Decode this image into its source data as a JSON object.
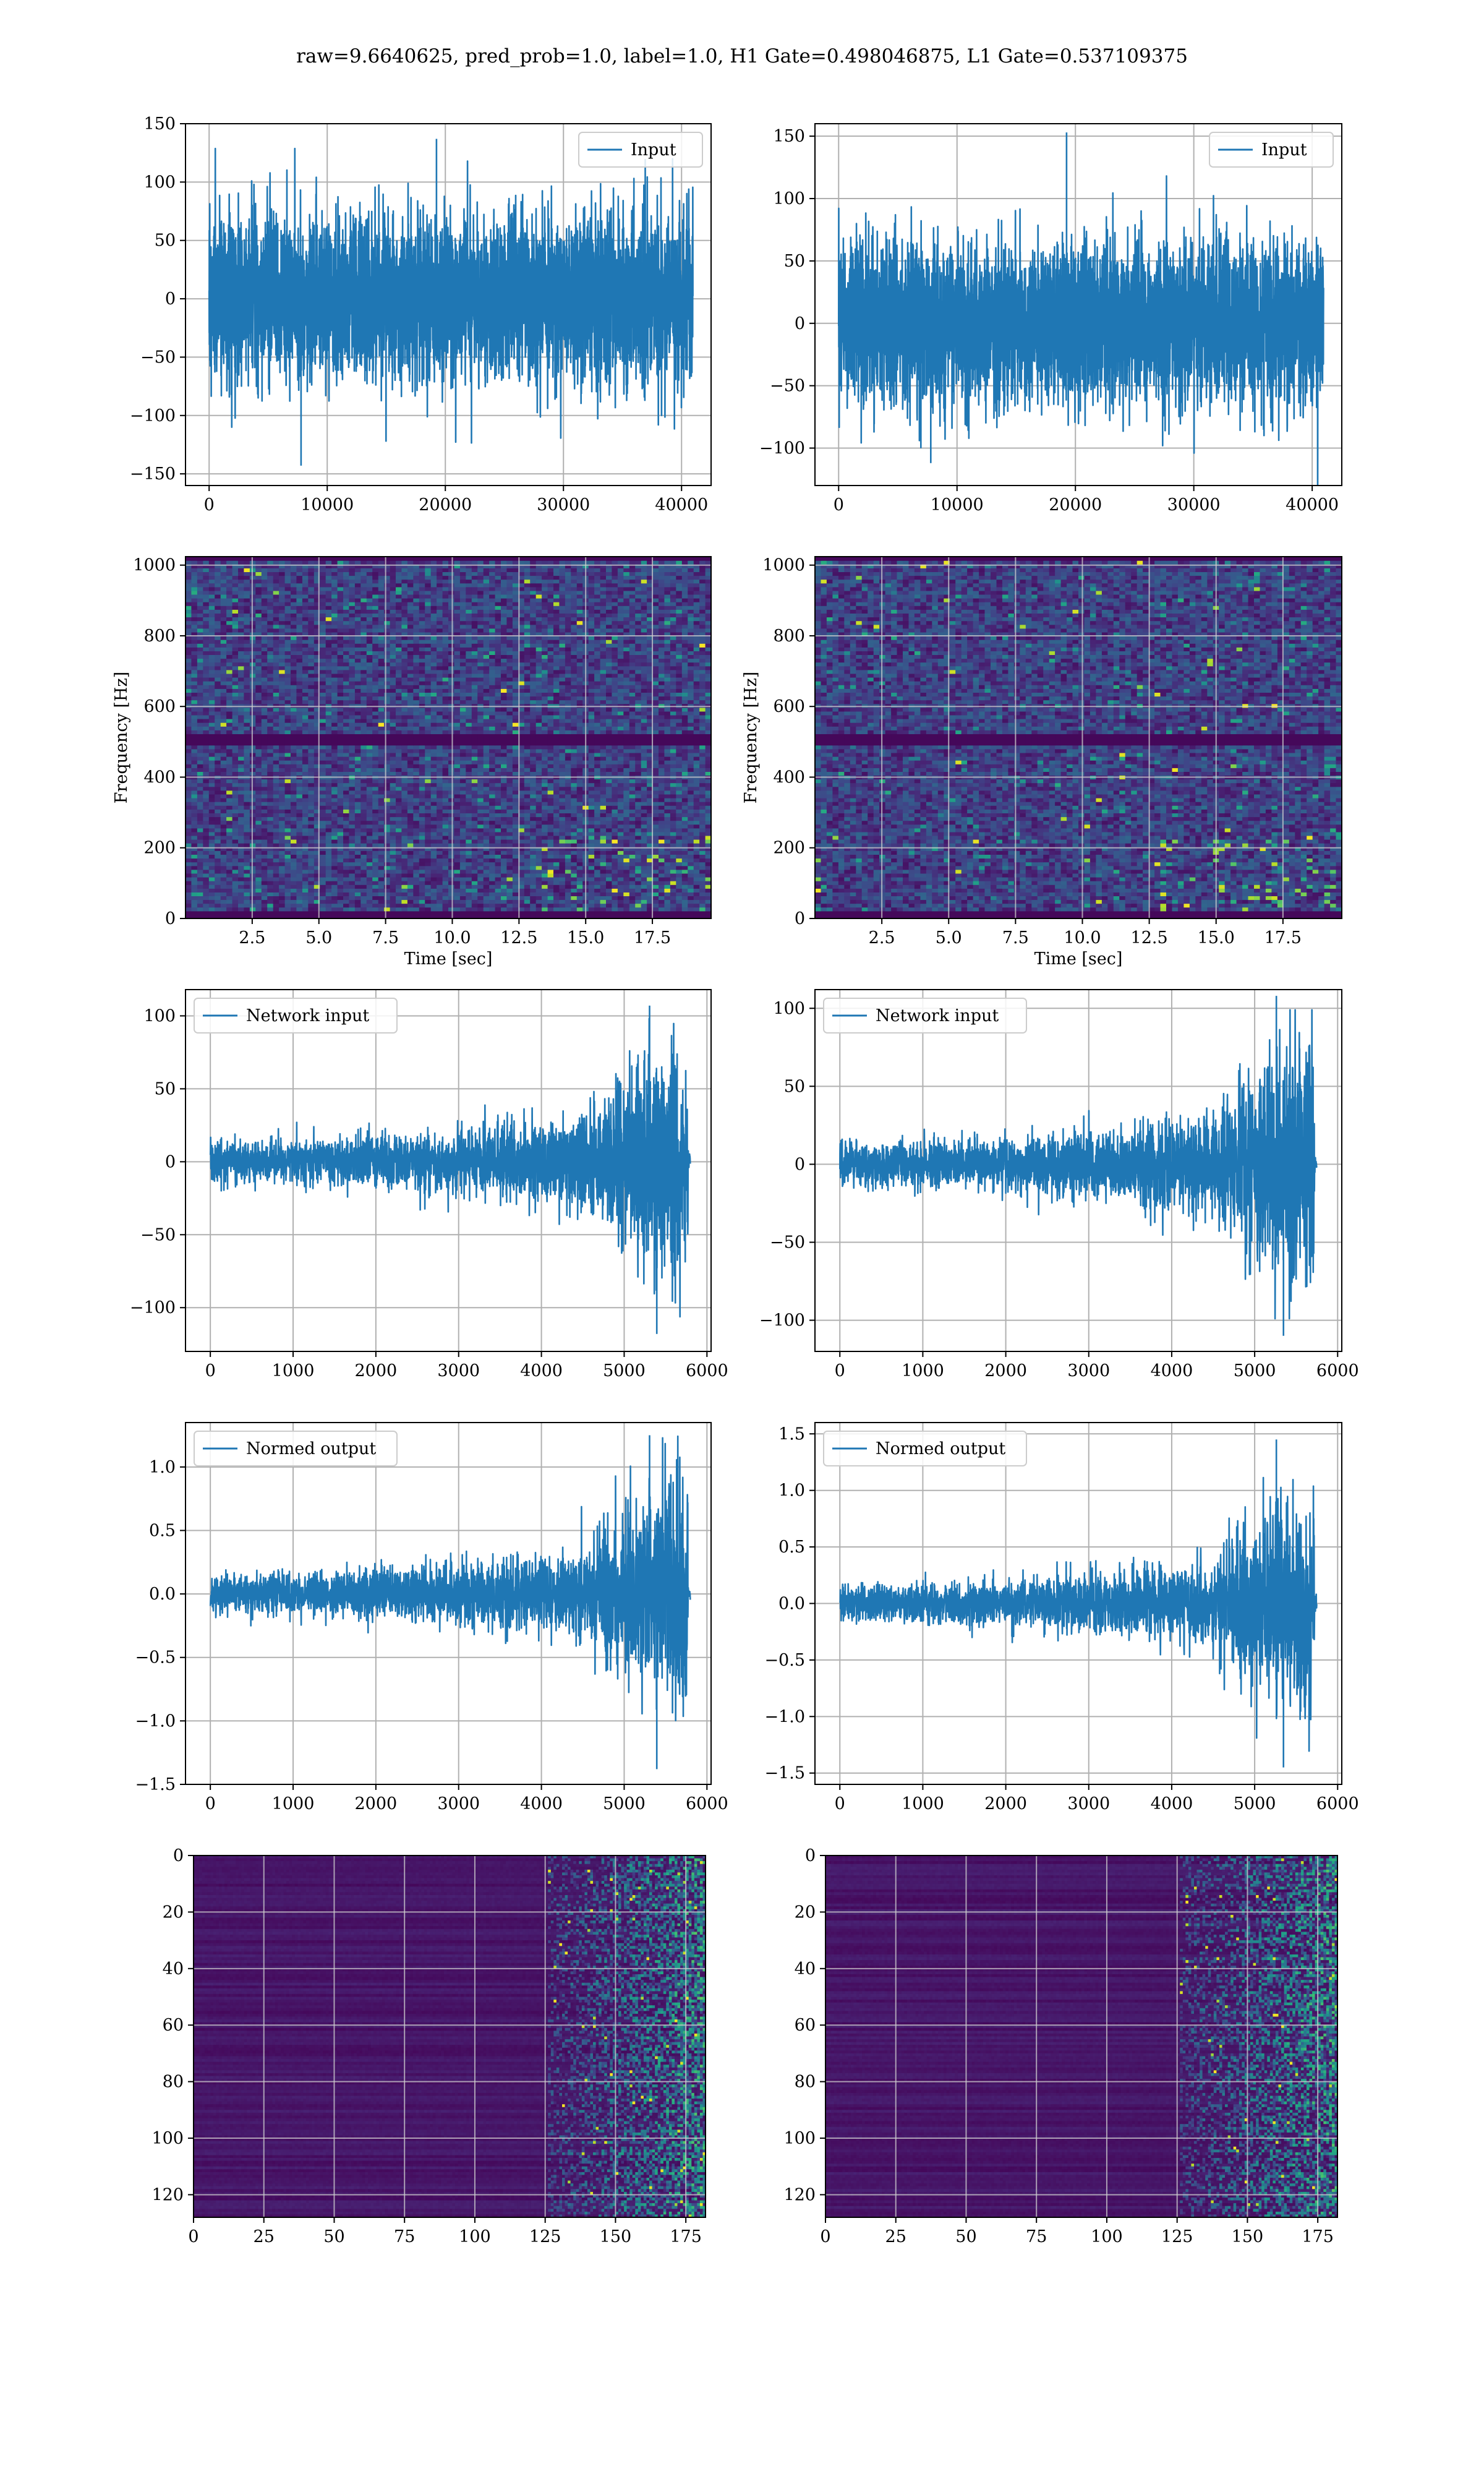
{
  "figure": {
    "suptitle": "raw=9.6640625, pred_prob=1.0, label=1.0, H1 Gate=0.498046875, L1 Gate=0.537109375"
  },
  "chart_data": [
    {
      "id": "h1-input",
      "type": "line",
      "series": [
        {
          "name": "Input",
          "color": "#1f77b4"
        }
      ],
      "xlim": [
        -2000,
        42500
      ],
      "ylim": [
        -160,
        150
      ],
      "xticks": [
        0,
        10000,
        20000,
        30000,
        40000
      ],
      "yticks": [
        -150,
        -100,
        -50,
        0,
        50,
        100,
        150
      ],
      "xlabel": "",
      "ylabel": "",
      "legend": "top-right",
      "grid": true,
      "signal": {
        "n_points": 40960,
        "x_end": 40960,
        "noise_std": 35,
        "envelope": "flat",
        "extremes": {
          "max": 137,
          "min": -143
        }
      }
    },
    {
      "id": "l1-input",
      "type": "line",
      "series": [
        {
          "name": "Input",
          "color": "#1f77b4"
        }
      ],
      "xlim": [
        -2000,
        42500
      ],
      "ylim": [
        -130,
        160
      ],
      "xticks": [
        0,
        10000,
        20000,
        30000,
        40000
      ],
      "yticks": [
        -100,
        -50,
        0,
        50,
        100,
        150
      ],
      "xlabel": "",
      "ylabel": "",
      "legend": "top-right",
      "grid": true,
      "signal": {
        "n_points": 40960,
        "x_end": 40960,
        "noise_std": 32,
        "envelope": "flat",
        "extremes": {
          "max": 153,
          "min": -112
        }
      }
    },
    {
      "id": "h1-spectrogram",
      "type": "heatmap",
      "colormap": "viridis",
      "xlim": [
        0,
        19.7
      ],
      "ylim": [
        0,
        1024
      ],
      "xticks": [
        2.5,
        5.0,
        7.5,
        10.0,
        12.5,
        15.0,
        17.5
      ],
      "yticks": [
        0,
        200,
        400,
        600,
        800,
        1000
      ],
      "xtick_labels": [
        "2.5",
        "5.0",
        "7.5",
        "10.0",
        "12.5",
        "15.0",
        "17.5"
      ],
      "xlabel": "Time [sec]",
      "ylabel": "Frequency [Hz]",
      "grid": true
    },
    {
      "id": "l1-spectrogram",
      "type": "heatmap",
      "colormap": "viridis",
      "xlim": [
        0,
        19.7
      ],
      "ylim": [
        0,
        1024
      ],
      "xticks": [
        2.5,
        5.0,
        7.5,
        10.0,
        12.5,
        15.0,
        17.5
      ],
      "yticks": [
        0,
        200,
        400,
        600,
        800,
        1000
      ],
      "xtick_labels": [
        "2.5",
        "5.0",
        "7.5",
        "10.0",
        "12.5",
        "15.0",
        "17.5"
      ],
      "xlabel": "Time [sec]",
      "ylabel": "Frequency [Hz]",
      "grid": true
    },
    {
      "id": "h1-network-input",
      "type": "line",
      "series": [
        {
          "name": "Network input",
          "color": "#1f77b4"
        }
      ],
      "xlim": [
        -300,
        6050
      ],
      "ylim": [
        -130,
        118
      ],
      "xticks": [
        0,
        1000,
        2000,
        3000,
        4000,
        5000,
        6000
      ],
      "yticks": [
        -100,
        -50,
        0,
        50,
        100
      ],
      "xlabel": "",
      "ylabel": "",
      "legend": "top-left",
      "grid": true,
      "signal": {
        "n_points": 5800,
        "x_end": 5800,
        "noise_std": 7,
        "envelope": "chirp",
        "extremes": {
          "max": 107,
          "min": -118
        }
      }
    },
    {
      "id": "l1-network-input",
      "type": "line",
      "series": [
        {
          "name": "Network input",
          "color": "#1f77b4"
        }
      ],
      "xlim": [
        -300,
        6050
      ],
      "ylim": [
        -120,
        112
      ],
      "xticks": [
        0,
        1000,
        2000,
        3000,
        4000,
        5000,
        6000
      ],
      "yticks": [
        -100,
        -50,
        0,
        50,
        100
      ],
      "xlabel": "",
      "ylabel": "",
      "legend": "top-left",
      "grid": true,
      "signal": {
        "n_points": 5750,
        "x_end": 5750,
        "noise_std": 7,
        "envelope": "chirp",
        "extremes": {
          "max": 108,
          "min": -110
        }
      }
    },
    {
      "id": "h1-normed-output",
      "type": "line",
      "series": [
        {
          "name": "Normed output",
          "color": "#1f77b4"
        }
      ],
      "xlim": [
        -300,
        6050
      ],
      "ylim": [
        -1.5,
        1.35
      ],
      "xticks": [
        0,
        1000,
        2000,
        3000,
        4000,
        5000,
        6000
      ],
      "yticks": [
        -1.5,
        -1.0,
        -0.5,
        0.0,
        0.5,
        1.0
      ],
      "ytick_labels": [
        "−1.5",
        "−1.0",
        "−0.5",
        "0.0",
        "0.5",
        "1.0"
      ],
      "xlabel": "",
      "ylabel": "",
      "legend": "top-left",
      "grid": true,
      "signal": {
        "n_points": 5800,
        "x_end": 5800,
        "noise_std": 0.075,
        "envelope": "chirp",
        "extremes": {
          "max": 1.25,
          "min": -1.38
        }
      }
    },
    {
      "id": "l1-normed-output",
      "type": "line",
      "series": [
        {
          "name": "Normed output",
          "color": "#1f77b4"
        }
      ],
      "xlim": [
        -300,
        6050
      ],
      "ylim": [
        -1.6,
        1.6
      ],
      "xticks": [
        0,
        1000,
        2000,
        3000,
        4000,
        5000,
        6000
      ],
      "yticks": [
        -1.5,
        -1.0,
        -0.5,
        0.0,
        0.5,
        1.0,
        1.5
      ],
      "ytick_labels": [
        "−1.5",
        "−1.0",
        "−0.5",
        "0.0",
        "0.5",
        "1.0",
        "1.5"
      ],
      "xlabel": "",
      "ylabel": "",
      "legend": "top-left",
      "grid": true,
      "signal": {
        "n_points": 5750,
        "x_end": 5750,
        "noise_std": 0.08,
        "envelope": "chirp",
        "extremes": {
          "max": 1.45,
          "min": -1.45
        }
      }
    },
    {
      "id": "h1-feature-map",
      "type": "heatmap",
      "colormap": "viridis",
      "rows": 128,
      "cols": 182,
      "xlim": [
        0,
        182
      ],
      "ylim": [
        128,
        0
      ],
      "xticks": [
        0,
        25,
        50,
        75,
        100,
        125,
        150,
        175
      ],
      "yticks": [
        0,
        20,
        40,
        60,
        80,
        100,
        120
      ],
      "xlabel": "",
      "ylabel": "",
      "grid": true,
      "activation_onset_col": 125
    },
    {
      "id": "l1-feature-map",
      "type": "heatmap",
      "colormap": "viridis",
      "rows": 128,
      "cols": 182,
      "xlim": [
        0,
        182
      ],
      "ylim": [
        128,
        0
      ],
      "xticks": [
        0,
        25,
        50,
        75,
        100,
        125,
        150,
        175
      ],
      "yticks": [
        0,
        20,
        40,
        60,
        80,
        100,
        120
      ],
      "xlabel": "",
      "ylabel": "",
      "grid": true,
      "activation_onset_col": 125
    }
  ]
}
